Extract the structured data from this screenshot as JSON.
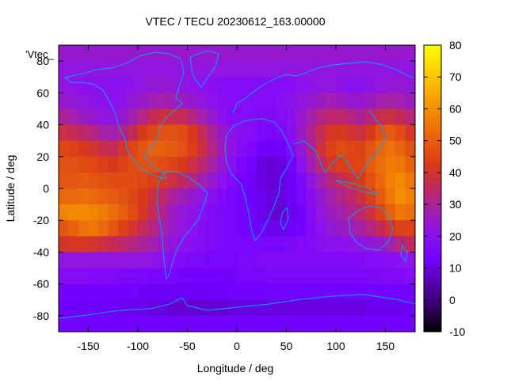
{
  "chart_data": {
    "type": "heatmap",
    "title": "VTEC / TECU 20230612_163.00000",
    "xlabel": "Longitude / deg",
    "ylabel": "Latitude / deg",
    "xlim": [
      -180,
      180
    ],
    "ylim": [
      -90,
      90
    ],
    "x_ticks": [
      -150,
      -100,
      -50,
      0,
      50,
      100,
      150
    ],
    "y_ticks": [
      -80,
      -60,
      -40,
      -20,
      0,
      20,
      40,
      60,
      80
    ],
    "colorbar": {
      "range": [
        -10,
        80
      ],
      "ticks": [
        -10,
        0,
        10,
        20,
        30,
        40,
        50,
        60,
        70,
        80
      ]
    },
    "legend_label": "'Vtec_",
    "grid": false,
    "colormap": "gnuplot-rgbformulae-7-5-15",
    "coastline_color": "#00aaff",
    "lon_step": 10,
    "lat_step": 10,
    "lon_centers": [
      -175,
      -165,
      -155,
      -145,
      -135,
      -125,
      -115,
      -105,
      -95,
      -85,
      -75,
      -65,
      -55,
      -45,
      -35,
      -25,
      -15,
      -5,
      5,
      15,
      25,
      35,
      45,
      55,
      65,
      75,
      85,
      95,
      105,
      115,
      125,
      135,
      145,
      155,
      165,
      175
    ],
    "lat_centers": [
      85,
      75,
      65,
      55,
      45,
      35,
      25,
      15,
      5,
      -5,
      -15,
      -25,
      -35,
      -45,
      -55,
      -65,
      -75,
      -85
    ],
    "values": [
      [
        24,
        24,
        24,
        24,
        24,
        24,
        24,
        24,
        24,
        24,
        24,
        24,
        24,
        24,
        24,
        24,
        24,
        24,
        24,
        24,
        24,
        24,
        24,
        24,
        24,
        24,
        24,
        24,
        24,
        24,
        24,
        24,
        24,
        24,
        24,
        24
      ],
      [
        22,
        22,
        22,
        22,
        22,
        22,
        22,
        22,
        22,
        22,
        22,
        22,
        22,
        22,
        22,
        22,
        22,
        22,
        22,
        22,
        22,
        22,
        22,
        22,
        22,
        22,
        22,
        22,
        22,
        22,
        22,
        22,
        22,
        22,
        22,
        22
      ],
      [
        22,
        21,
        20,
        20,
        20,
        20,
        20,
        21,
        22,
        23,
        24,
        23,
        22,
        21,
        20,
        19,
        18,
        18,
        18,
        18,
        18,
        18,
        18,
        19,
        20,
        21,
        22,
        22,
        21,
        20,
        20,
        21,
        22,
        23,
        23,
        23
      ],
      [
        24,
        23,
        22,
        21,
        20,
        20,
        21,
        23,
        25,
        27,
        28,
        27,
        26,
        24,
        22,
        20,
        19,
        18,
        18,
        18,
        18,
        18,
        19,
        20,
        22,
        24,
        26,
        27,
        26,
        24,
        24,
        26,
        28,
        29,
        28,
        26
      ],
      [
        30,
        28,
        26,
        24,
        22,
        22,
        24,
        28,
        32,
        36,
        38,
        37,
        36,
        32,
        28,
        24,
        20,
        18,
        18,
        18,
        17,
        17,
        18,
        20,
        24,
        28,
        32,
        34,
        34,
        32,
        30,
        33,
        37,
        38,
        36,
        33
      ],
      [
        38,
        36,
        34,
        32,
        29,
        28,
        31,
        36,
        42,
        45,
        47,
        47,
        46,
        42,
        36,
        30,
        25,
        21,
        19,
        18,
        16,
        15,
        16,
        19,
        25,
        31,
        37,
        41,
        42,
        40,
        38,
        42,
        47,
        49,
        46,
        41
      ],
      [
        45,
        44,
        42,
        40,
        37,
        36,
        40,
        45,
        48,
        50,
        50,
        49,
        47,
        43,
        38,
        32,
        26,
        21,
        18,
        16,
        13,
        12,
        13,
        17,
        23,
        30,
        38,
        44,
        46,
        45,
        44,
        48,
        52,
        54,
        51,
        47
      ],
      [
        47,
        47,
        46,
        45,
        43,
        42,
        44,
        46,
        47,
        47,
        46,
        44,
        42,
        38,
        34,
        29,
        24,
        19,
        15,
        13,
        10,
        9,
        10,
        14,
        20,
        27,
        34,
        40,
        43,
        44,
        45,
        49,
        53,
        56,
        55,
        51
      ],
      [
        48,
        48,
        49,
        48,
        47,
        46,
        46,
        46,
        45,
        43,
        41,
        38,
        35,
        32,
        28,
        24,
        20,
        17,
        14,
        12,
        10,
        9,
        10,
        12,
        16,
        22,
        28,
        33,
        36,
        39,
        42,
        47,
        52,
        57,
        59,
        55
      ],
      [
        52,
        52,
        53,
        52,
        51,
        49,
        47,
        45,
        42,
        38,
        34,
        30,
        27,
        24,
        21,
        19,
        17,
        15,
        14,
        12,
        11,
        10,
        10,
        12,
        15,
        19,
        24,
        28,
        31,
        34,
        38,
        43,
        49,
        55,
        60,
        57
      ],
      [
        58,
        59,
        59,
        58,
        56,
        53,
        50,
        46,
        41,
        36,
        31,
        26,
        23,
        21,
        19,
        17,
        16,
        15,
        14,
        13,
        11,
        9,
        9,
        11,
        14,
        18,
        22,
        26,
        28,
        31,
        34,
        38,
        44,
        50,
        55,
        53
      ],
      [
        48,
        51,
        54,
        55,
        52,
        48,
        44,
        40,
        36,
        32,
        28,
        25,
        22,
        20,
        18,
        17,
        16,
        15,
        14,
        13,
        12,
        11,
        11,
        12,
        14,
        17,
        20,
        23,
        25,
        27,
        29,
        32,
        36,
        40,
        44,
        44
      ],
      [
        40,
        41,
        41,
        40,
        38,
        36,
        34,
        32,
        30,
        28,
        25,
        22,
        20,
        19,
        18,
        17,
        16,
        15,
        15,
        15,
        15,
        15,
        15,
        16,
        17,
        18,
        19,
        20,
        20,
        21,
        22,
        23,
        25,
        28,
        32,
        35
      ],
      [
        22,
        22,
        22,
        22,
        22,
        22,
        22,
        22,
        22,
        21,
        20,
        18,
        17,
        16,
        16,
        15,
        15,
        15,
        16,
        16,
        17,
        17,
        17,
        17,
        17,
        17,
        17,
        17,
        17,
        17,
        17,
        18,
        18,
        19,
        20,
        21
      ],
      [
        18,
        18,
        18,
        17,
        17,
        17,
        16,
        16,
        16,
        15,
        15,
        15,
        14,
        14,
        14,
        14,
        14,
        14,
        15,
        15,
        15,
        16,
        16,
        16,
        16,
        16,
        16,
        16,
        16,
        16,
        16,
        16,
        17,
        17,
        17,
        18
      ],
      [
        14,
        14,
        14,
        14,
        13,
        13,
        13,
        13,
        12,
        12,
        12,
        12,
        12,
        12,
        12,
        12,
        12,
        13,
        13,
        13,
        13,
        13,
        13,
        13,
        13,
        13,
        13,
        13,
        13,
        13,
        13,
        13,
        13,
        13,
        14,
        14
      ],
      [
        12,
        12,
        12,
        12,
        12,
        12,
        11,
        11,
        11,
        10,
        10,
        9,
        9,
        9,
        9,
        9,
        9,
        10,
        10,
        10,
        10,
        10,
        10,
        10,
        10,
        10,
        10,
        10,
        10,
        10,
        10,
        11,
        11,
        11,
        11,
        12
      ],
      [
        13,
        13,
        13,
        13,
        13,
        13,
        13,
        13,
        13,
        13,
        13,
        13,
        13,
        13,
        13,
        13,
        13,
        13,
        13,
        13,
        13,
        13,
        13,
        13,
        13,
        13,
        13,
        13,
        13,
        13,
        13,
        13,
        13,
        13,
        13,
        13
      ]
    ]
  }
}
